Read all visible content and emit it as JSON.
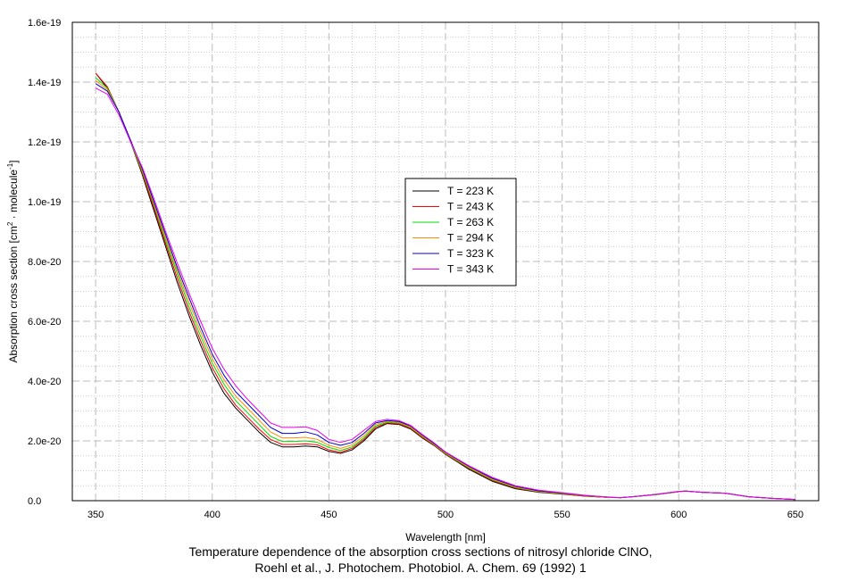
{
  "chart_data": {
    "type": "line",
    "caption_line1": "Temperature dependence of the absorption cross sections of nitrosyl chloride ClNO,",
    "caption_line2": "Roehl et al., J. Photochem. Photobiol. A. Chem. 69 (1992) 1",
    "xlabel": "Wavelength [nm]",
    "ylabel_main": "Absorption cross section [cm",
    "ylabel_sup1": "2",
    "ylabel_mid": " · molecule",
    "ylabel_sup2": "-1",
    "ylabel_end": "]",
    "xlim": [
      340,
      660
    ],
    "ylim": [
      0,
      1.6e-19
    ],
    "xticks": [
      350,
      400,
      450,
      500,
      550,
      600,
      650
    ],
    "yticks": [
      {
        "value": 0,
        "label": "0.0"
      },
      {
        "value": 2e-20,
        "label": "2.0e-20"
      },
      {
        "value": 4e-20,
        "label": "4.0e-20"
      },
      {
        "value": 6e-20,
        "label": "6.0e-20"
      },
      {
        "value": 8e-20,
        "label": "8.0e-20"
      },
      {
        "value": 1e-19,
        "label": "1.0e-19"
      },
      {
        "value": 1.2e-19,
        "label": "1.2e-19"
      },
      {
        "value": 1.4e-19,
        "label": "1.4e-19"
      },
      {
        "value": 1.6e-19,
        "label": "1.6e-19"
      }
    ],
    "grid": true,
    "legend_position": "center-right",
    "x": [
      350,
      355,
      360,
      365,
      370,
      375,
      380,
      385,
      390,
      395,
      400,
      405,
      410,
      415,
      420,
      425,
      430,
      435,
      440,
      445,
      450,
      455,
      460,
      465,
      470,
      475,
      480,
      485,
      490,
      495,
      500,
      510,
      520,
      530,
      540,
      550,
      560,
      570,
      575,
      580,
      590,
      600,
      603,
      610,
      620,
      630,
      640,
      650
    ],
    "series": [
      {
        "name": "T = 223 K",
        "color": "#000000",
        "values": [
          1.43e-19,
          1.38e-19,
          1.3e-19,
          1.2e-19,
          1.09e-19,
          9.7e-20,
          8.5e-20,
          7.3e-20,
          6.2e-20,
          5.2e-20,
          4.3e-20,
          3.6e-20,
          3.1e-20,
          2.7e-20,
          2.3e-20,
          1.95e-20,
          1.8e-20,
          1.8e-20,
          1.83e-20,
          1.8e-20,
          1.65e-20,
          1.58e-20,
          1.7e-20,
          2e-20,
          2.4e-20,
          2.58e-20,
          2.55e-20,
          2.4e-20,
          2.1e-20,
          1.85e-20,
          1.55e-20,
          1.05e-20,
          6.5e-21,
          4e-21,
          2.8e-21,
          2.2e-21,
          1.5e-21,
          1.1e-21,
          1e-21,
          1.3e-21,
          2e-21,
          3e-21,
          3.2e-21,
          2.8e-21,
          2.5e-21,
          1.3e-21,
          8e-22,
          4e-22
        ]
      },
      {
        "name": "T = 243 K",
        "color": "#ff0000",
        "values": [
          1.43e-19,
          1.385e-19,
          1.3e-19,
          1.2e-19,
          1.095e-19,
          9.8e-20,
          8.6e-20,
          7.45e-20,
          6.35e-20,
          5.35e-20,
          4.45e-20,
          3.75e-20,
          3.2e-20,
          2.8e-20,
          2.4e-20,
          2.05e-20,
          1.88e-20,
          1.88e-20,
          1.9e-20,
          1.87e-20,
          1.7e-20,
          1.62e-20,
          1.75e-20,
          2.05e-20,
          2.45e-20,
          2.6e-20,
          2.57e-20,
          2.42e-20,
          2.12e-20,
          1.86e-20,
          1.56e-20,
          1.08e-20,
          6.8e-21,
          4.2e-21,
          2.9e-21,
          2.3e-21,
          1.5e-21,
          1.1e-21,
          1e-21,
          1.3e-21,
          2e-21,
          3e-21,
          3.2e-21,
          2.8e-21,
          2.5e-21,
          1.3e-21,
          8e-22,
          4e-22
        ]
      },
      {
        "name": "T = 263 K",
        "color": "#00dd00",
        "values": [
          1.415e-19,
          1.38e-19,
          1.3e-19,
          1.2e-19,
          1.1e-19,
          9.9e-20,
          8.7e-20,
          7.6e-20,
          6.5e-20,
          5.5e-20,
          4.6e-20,
          3.9e-20,
          3.35e-20,
          2.95e-20,
          2.55e-20,
          2.15e-20,
          1.98e-20,
          1.98e-20,
          2e-20,
          1.95e-20,
          1.78e-20,
          1.68e-20,
          1.8e-20,
          2.1e-20,
          2.5e-20,
          2.62e-20,
          2.6e-20,
          2.45e-20,
          2.15e-20,
          1.88e-20,
          1.58e-20,
          1.1e-20,
          7e-21,
          4.4e-21,
          3e-21,
          2.4e-21,
          1.6e-21,
          1.1e-21,
          1e-21,
          1.3e-21,
          2e-21,
          3e-21,
          3.2e-21,
          2.8e-21,
          2.5e-21,
          1.3e-21,
          8e-22,
          4e-22
        ]
      },
      {
        "name": "T = 294 K",
        "color": "#ff8c00",
        "values": [
          1.405e-19,
          1.375e-19,
          1.3e-19,
          1.205e-19,
          1.105e-19,
          9.95e-20,
          8.8e-20,
          7.7e-20,
          6.65e-20,
          5.65e-20,
          4.75e-20,
          4.05e-20,
          3.5e-20,
          3.1e-20,
          2.7e-20,
          2.3e-20,
          2.1e-20,
          2.1e-20,
          2.12e-20,
          2.05e-20,
          1.85e-20,
          1.75e-20,
          1.87e-20,
          2.17e-20,
          2.55e-20,
          2.65e-20,
          2.62e-20,
          2.47e-20,
          2.17e-20,
          1.9e-20,
          1.6e-20,
          1.12e-20,
          7.2e-21,
          4.6e-21,
          3.1e-21,
          2.5e-21,
          1.6e-21,
          1.1e-21,
          1e-21,
          1.3e-21,
          2.1e-21,
          3e-21,
          3.2e-21,
          2.8e-21,
          2.5e-21,
          1.3e-21,
          8e-22,
          4e-22
        ]
      },
      {
        "name": "T = 323 K",
        "color": "#0000cc",
        "values": [
          1.395e-19,
          1.37e-19,
          1.3e-19,
          1.205e-19,
          1.11e-19,
          1e-19,
          8.9e-20,
          7.8e-20,
          6.8e-20,
          5.8e-20,
          4.9e-20,
          4.2e-20,
          3.65e-20,
          3.25e-20,
          2.85e-20,
          2.45e-20,
          2.25e-20,
          2.25e-20,
          2.3e-20,
          2.2e-20,
          1.95e-20,
          1.85e-20,
          1.95e-20,
          2.25e-20,
          2.6e-20,
          2.68e-20,
          2.65e-20,
          2.5e-20,
          2.2e-20,
          1.92e-20,
          1.62e-20,
          1.15e-20,
          7.5e-21,
          4.8e-21,
          3.3e-21,
          2.6e-21,
          1.7e-21,
          1.2e-21,
          1e-21,
          1.3e-21,
          2.1e-21,
          3.1e-21,
          3.2e-21,
          2.8e-21,
          2.5e-21,
          1.3e-21,
          8e-22,
          4e-22
        ]
      },
      {
        "name": "T = 343 K",
        "color": "#ee00ee",
        "values": [
          1.38e-19,
          1.36e-19,
          1.29e-19,
          1.2e-19,
          1.115e-19,
          1.01e-19,
          9e-20,
          7.95e-20,
          6.95e-20,
          6e-20,
          5.1e-20,
          4.4e-20,
          3.85e-20,
          3.4e-20,
          3e-20,
          2.6e-20,
          2.45e-20,
          2.45e-20,
          2.47e-20,
          2.35e-20,
          2.05e-20,
          1.95e-20,
          2.05e-20,
          2.35e-20,
          2.65e-20,
          2.72e-20,
          2.68e-20,
          2.52e-20,
          2.22e-20,
          1.94e-20,
          1.63e-20,
          1.17e-20,
          7.8e-21,
          5e-21,
          3.5e-21,
          2.7e-21,
          1.8e-21,
          1.2e-21,
          1e-21,
          1.3e-21,
          2.1e-21,
          3.1e-21,
          3.2e-21,
          2.8e-21,
          2.5e-21,
          1.3e-21,
          8e-22,
          4e-22
        ]
      }
    ]
  }
}
